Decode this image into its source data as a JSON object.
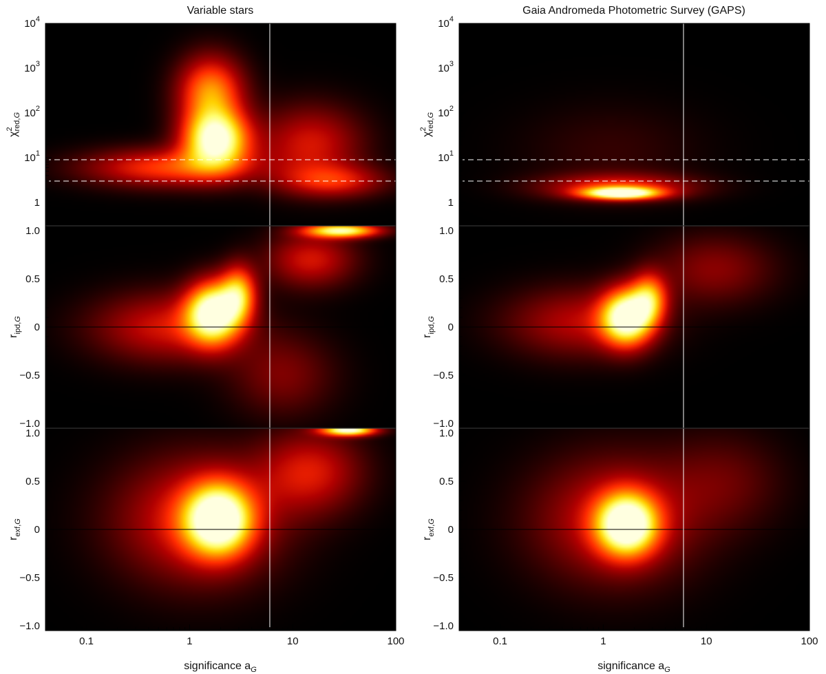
{
  "chart_data": [
    {
      "type": "heatmap",
      "column": "left",
      "title": "Variable stars",
      "panels": [
        {
          "id": "chi2",
          "ylabel_main": "χ",
          "ylabel_sup": "2",
          "ylabel_sub": "red,",
          "ylabel_sub_italic": "G",
          "yscale": "log",
          "ylim": [
            0.3,
            10000
          ],
          "yticks": [
            1,
            10,
            100,
            1000,
            10000
          ],
          "ytick_labels": [
            {
              "base": "1",
              "exp": ""
            },
            {
              "base": "10",
              "exp": "1"
            },
            {
              "base": "10",
              "exp": "2"
            },
            {
              "base": "10",
              "exp": "3"
            },
            {
              "base": "10",
              "exp": "4"
            }
          ],
          "hlines": [
            {
              "y": 9,
              "style": "dashed",
              "color": "#ffffff"
            },
            {
              "y": 3,
              "style": "dashed",
              "color": "#ffffff"
            }
          ],
          "blobs": [
            {
              "x": 1.8,
              "y": 25,
              "sx": 0.22,
              "sy": 0.45,
              "w": 1.0
            },
            {
              "x": 1.6,
              "y": 300,
              "sx": 0.22,
              "sy": 0.55,
              "w": 0.6
            },
            {
              "x": 0.6,
              "y": 6,
              "sx": 0.55,
              "sy": 0.3,
              "w": 0.45
            },
            {
              "x": 15,
              "y": 20,
              "sx": 0.35,
              "sy": 0.6,
              "w": 0.35
            },
            {
              "x": 25,
              "y": 3,
              "sx": 0.35,
              "sy": 0.25,
              "w": 0.35
            }
          ]
        },
        {
          "id": "ripd",
          "ylabel_main": "r",
          "ylabel_sub": "ipd,",
          "ylabel_sub_italic": "G",
          "yscale": "linear",
          "ylim": [
            -1.05,
            1.05
          ],
          "yticks": [
            -1.0,
            -0.5,
            0,
            0.5,
            1.0
          ],
          "ytick_labels": [
            {
              "base": "−1.0"
            },
            {
              "base": "−0.5"
            },
            {
              "base": "0"
            },
            {
              "base": "0.5"
            },
            {
              "base": "1.0"
            }
          ],
          "hlines": [
            {
              "y": 0,
              "style": "solid",
              "color": "#000000"
            }
          ],
          "blobs": [
            {
              "x": 1.7,
              "y": 0.15,
              "sx": 0.18,
              "sy": 0.22,
              "w": 1.0
            },
            {
              "x": 3.0,
              "y": 0.35,
              "sx": 0.12,
              "sy": 0.2,
              "w": 0.6
            },
            {
              "x": 0.6,
              "y": 0.0,
              "sx": 0.5,
              "sy": 0.25,
              "w": 0.35
            },
            {
              "x": 30,
              "y": 1.0,
              "sx": 0.25,
              "sy": 0.05,
              "w": 0.9
            },
            {
              "x": 15,
              "y": 0.7,
              "sx": 0.3,
              "sy": 0.2,
              "w": 0.35
            },
            {
              "x": 8,
              "y": -0.5,
              "sx": 0.35,
              "sy": 0.3,
              "w": 0.2
            }
          ]
        },
        {
          "id": "rexf",
          "ylabel_main": "r",
          "ylabel_sub": "exf,",
          "ylabel_sub_italic": "G",
          "yscale": "linear",
          "ylim": [
            -1.05,
            1.05
          ],
          "yticks": [
            -1.0,
            -0.5,
            0,
            0.5,
            1.0
          ],
          "ytick_labels": [
            {
              "base": "−1.0"
            },
            {
              "base": "−0.5"
            },
            {
              "base": "0"
            },
            {
              "base": "0.5"
            },
            {
              "base": "1.0"
            }
          ],
          "hlines": [
            {
              "y": 0,
              "style": "solid",
              "color": "#000000"
            }
          ],
          "blobs": [
            {
              "x": 1.9,
              "y": 0.1,
              "sx": 0.22,
              "sy": 0.25,
              "w": 1.0
            },
            {
              "x": 1.2,
              "y": 0.1,
              "sx": 0.55,
              "sy": 0.45,
              "w": 0.4
            },
            {
              "x": 35,
              "y": 1.03,
              "sx": 0.18,
              "sy": 0.04,
              "w": 1.0
            },
            {
              "x": 15,
              "y": 0.6,
              "sx": 0.35,
              "sy": 0.3,
              "w": 0.35
            }
          ]
        }
      ]
    },
    {
      "type": "heatmap",
      "column": "right",
      "title": "Gaia Andromeda Photometric Survey (GAPS)",
      "panels": [
        {
          "id": "chi2",
          "ylabel_main": "χ",
          "ylabel_sup": "2",
          "ylabel_sub": "red,",
          "ylabel_sub_italic": "G",
          "yscale": "log",
          "ylim": [
            0.3,
            10000
          ],
          "yticks": [
            1,
            10,
            100,
            1000,
            10000
          ],
          "ytick_labels": [
            {
              "base": "1",
              "exp": ""
            },
            {
              "base": "10",
              "exp": "1"
            },
            {
              "base": "10",
              "exp": "2"
            },
            {
              "base": "10",
              "exp": "3"
            },
            {
              "base": "10",
              "exp": "4"
            }
          ],
          "hlines": [
            {
              "y": 9,
              "style": "dashed",
              "color": "#ffffff"
            },
            {
              "y": 3,
              "style": "dashed",
              "color": "#ffffff"
            }
          ],
          "blobs": [
            {
              "x": 1.5,
              "y": 1.6,
              "sx": 0.25,
              "sy": 0.09,
              "w": 1.0
            },
            {
              "x": 1.4,
              "y": 2.2,
              "sx": 0.5,
              "sy": 0.2,
              "w": 0.4
            },
            {
              "x": 1.2,
              "y": 15,
              "sx": 0.6,
              "sy": 0.7,
              "w": 0.08
            }
          ]
        },
        {
          "id": "ripd",
          "ylabel_main": "r",
          "ylabel_sub": "ipd,",
          "ylabel_sub_italic": "G",
          "yscale": "linear",
          "ylim": [
            -1.05,
            1.05
          ],
          "yticks": [
            -1.0,
            -0.5,
            0,
            0.5,
            1.0
          ],
          "ytick_labels": [
            {
              "base": "−1.0"
            },
            {
              "base": "−0.5"
            },
            {
              "base": "0"
            },
            {
              "base": "0.5"
            },
            {
              "base": "1.0"
            }
          ],
          "hlines": [
            {
              "y": 0,
              "style": "solid",
              "color": "#000000"
            }
          ],
          "blobs": [
            {
              "x": 1.7,
              "y": 0.1,
              "sx": 0.17,
              "sy": 0.2,
              "w": 1.0
            },
            {
              "x": 2.8,
              "y": 0.3,
              "sx": 0.12,
              "sy": 0.18,
              "w": 0.55
            },
            {
              "x": 0.6,
              "y": 0.05,
              "sx": 0.5,
              "sy": 0.25,
              "w": 0.3
            },
            {
              "x": 12,
              "y": 0.6,
              "sx": 0.4,
              "sy": 0.25,
              "w": 0.22
            }
          ]
        },
        {
          "id": "rexf",
          "ylabel_main": "r",
          "ylabel_sub": "exf,",
          "ylabel_sub_italic": "G",
          "yscale": "linear",
          "ylim": [
            -1.05,
            1.05
          ],
          "yticks": [
            -1.0,
            -0.5,
            0,
            0.5,
            1.0
          ],
          "ytick_labels": [
            {
              "base": "−1.0"
            },
            {
              "base": "−0.5"
            },
            {
              "base": "0"
            },
            {
              "base": "0.5"
            },
            {
              "base": "1.0"
            }
          ],
          "hlines": [
            {
              "y": 0,
              "style": "solid",
              "color": "#000000"
            }
          ],
          "blobs": [
            {
              "x": 1.7,
              "y": 0.05,
              "sx": 0.2,
              "sy": 0.22,
              "w": 1.0
            },
            {
              "x": 1.3,
              "y": 0.1,
              "sx": 0.55,
              "sy": 0.45,
              "w": 0.35
            },
            {
              "x": 15,
              "y": 0.5,
              "sx": 0.4,
              "sy": 0.35,
              "w": 0.15
            }
          ]
        }
      ]
    }
  ],
  "xaxis": {
    "label_main": "significance a",
    "label_sub_italic": "G",
    "scale": "log",
    "xlim": [
      0.04,
      100
    ],
    "xticks": [
      0.1,
      1,
      10,
      100
    ],
    "xtick_labels": [
      "0.1",
      "1",
      "10",
      "100"
    ]
  },
  "vline_x": 6,
  "colormap": [
    "#000000",
    "#5a0000",
    "#b00000",
    "#ff2a00",
    "#ff7a00",
    "#ffd000",
    "#ffff70",
    "#ffffe0"
  ]
}
